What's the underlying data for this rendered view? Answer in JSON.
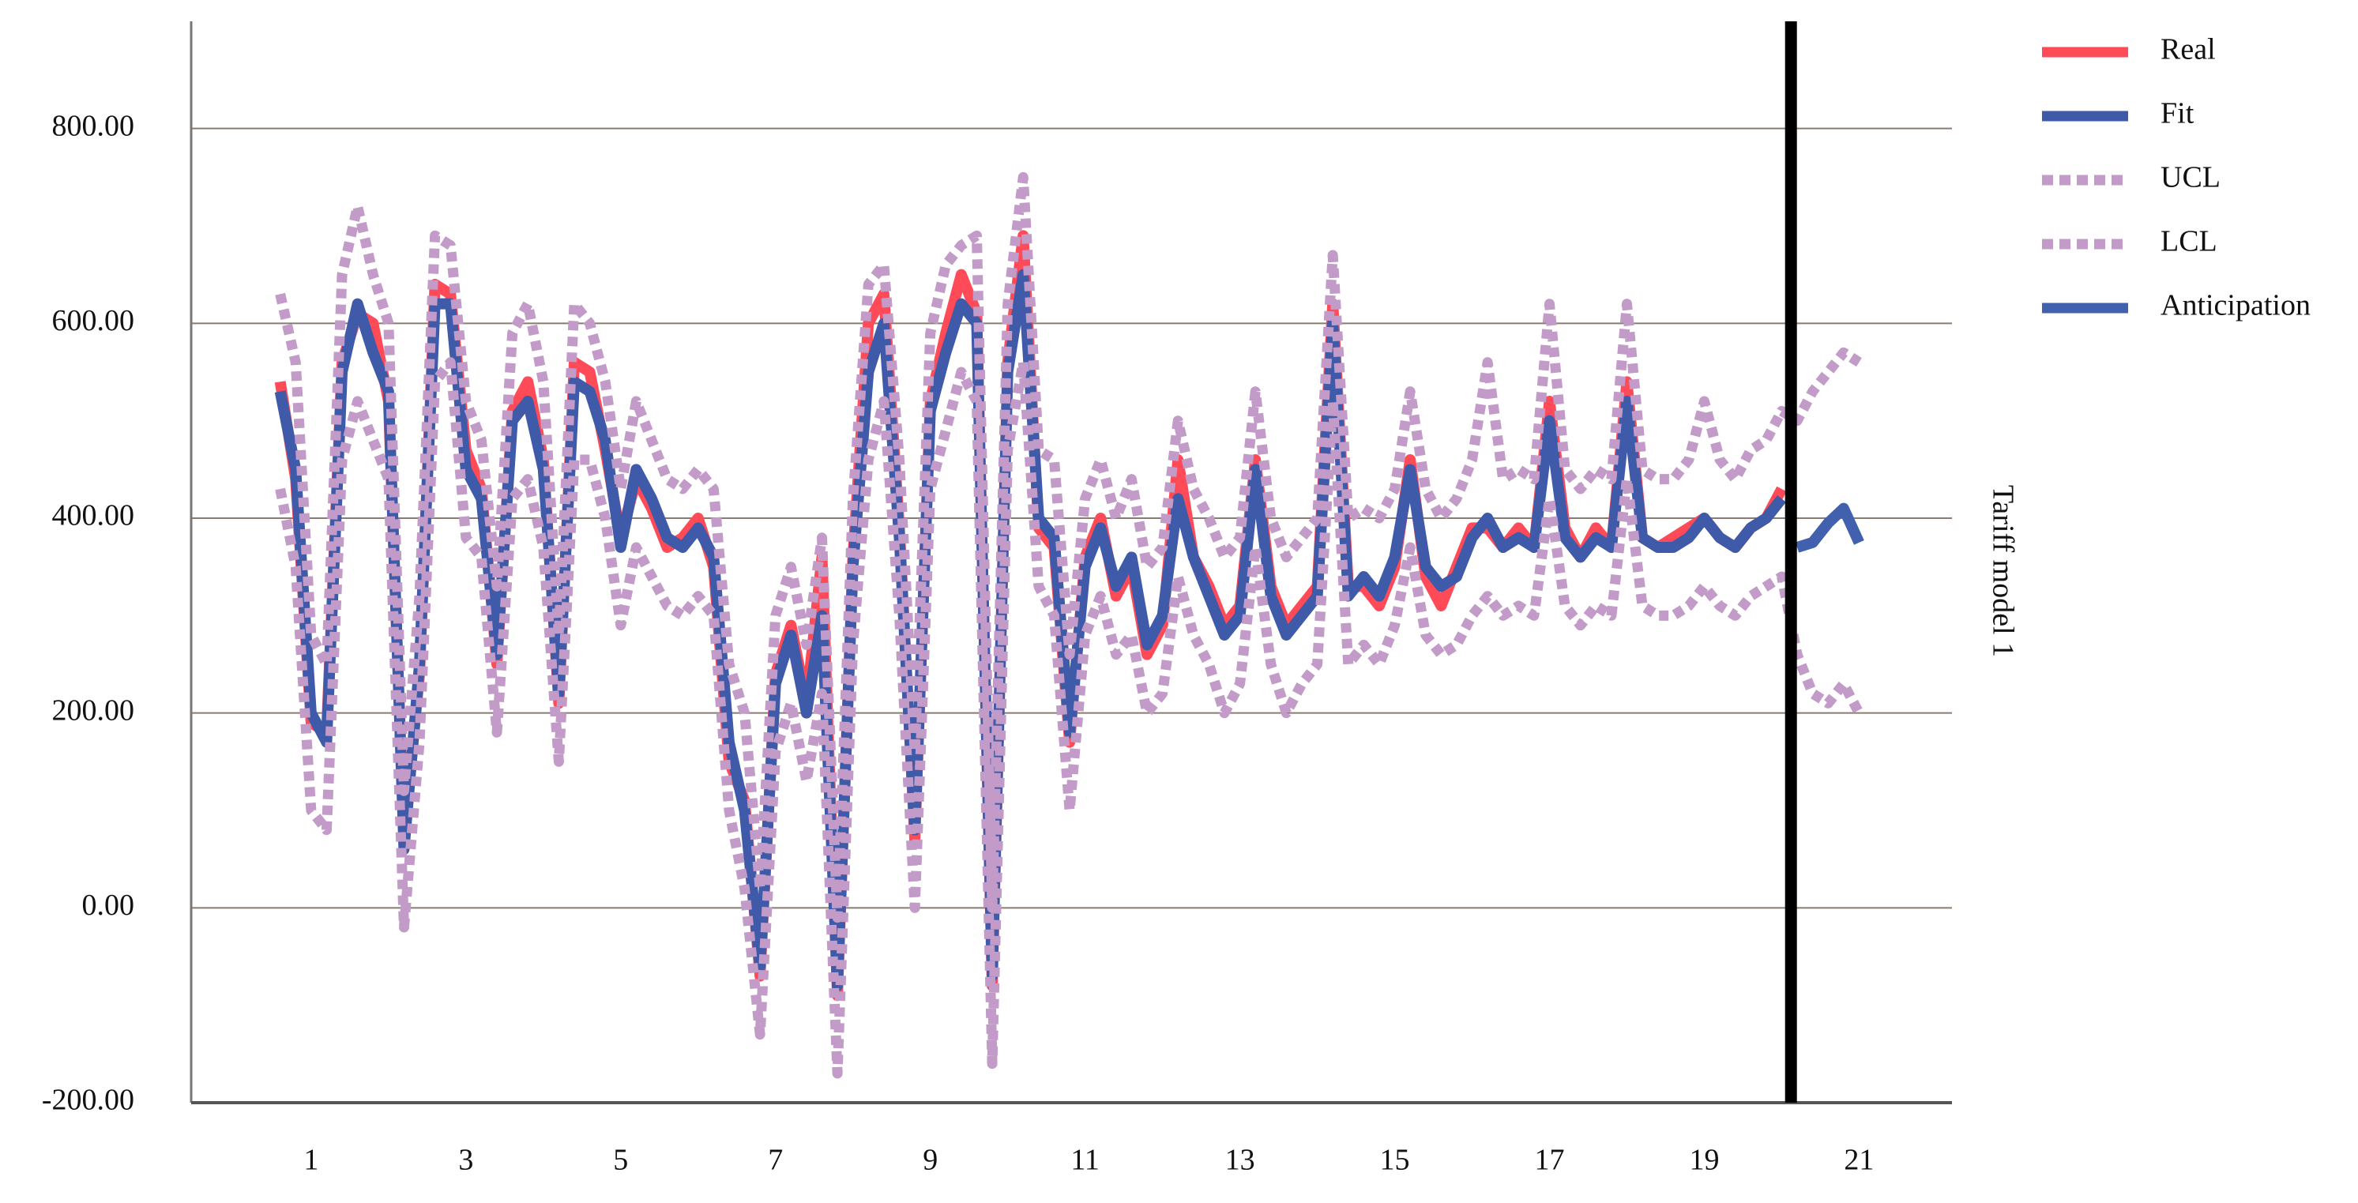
{
  "chart_data": {
    "type": "line",
    "side_label": "Tariff model 1",
    "x": [
      0.6,
      0.8,
      1.0,
      1.2,
      1.4,
      1.6,
      1.8,
      2.0,
      2.2,
      2.4,
      2.6,
      2.8,
      3.0,
      3.2,
      3.4,
      3.6,
      3.8,
      4.0,
      4.2,
      4.4,
      4.6,
      4.8,
      5.0,
      5.2,
      5.4,
      5.6,
      5.8,
      6.0,
      6.2,
      6.4,
      6.6,
      6.8,
      7.0,
      7.2,
      7.4,
      7.6,
      7.8,
      8.0,
      8.2,
      8.4,
      8.6,
      8.8,
      9.0,
      9.2,
      9.4,
      9.6,
      9.8,
      10.0,
      10.2,
      10.4,
      10.6,
      10.8,
      11.0,
      11.2,
      11.4,
      11.6,
      11.8,
      12.0,
      12.2,
      12.4,
      12.6,
      12.8,
      13.0,
      13.2,
      13.4,
      13.6,
      13.8,
      14.0,
      14.2,
      14.4,
      14.6,
      14.8,
      15.0,
      15.2,
      15.4,
      15.6,
      15.8,
      16.0,
      16.2,
      16.4,
      16.6,
      16.8,
      17.0,
      17.2,
      17.4,
      17.6,
      17.8,
      18.0,
      18.2,
      18.4,
      18.6,
      18.8,
      19.0,
      19.2,
      19.4,
      19.6,
      19.8,
      20.0,
      20.2,
      20.4,
      20.6,
      20.8,
      21.0
    ],
    "series": [
      {
        "name": "Real",
        "color": "#ff4a57",
        "dash": false,
        "values": [
          540,
          440,
          190,
          180,
          560,
          610,
          600,
          520,
          70,
          240,
          640,
          630,
          470,
          430,
          250,
          510,
          540,
          460,
          210,
          560,
          550,
          470,
          380,
          440,
          410,
          370,
          380,
          400,
          350,
          150,
          110,
          -70,
          240,
          290,
          210,
          360,
          -90,
          360,
          600,
          630,
          390,
          70,
          520,
          590,
          650,
          610,
          -80,
          560,
          690,
          390,
          370,
          170,
          360,
          400,
          320,
          350,
          260,
          290,
          460,
          360,
          330,
          290,
          310,
          460,
          330,
          290,
          310,
          330,
          620,
          330,
          330,
          310,
          350,
          460,
          340,
          310,
          350,
          390,
          390,
          370,
          390,
          370,
          520,
          390,
          360,
          390,
          370,
          540,
          380,
          370,
          380,
          390,
          400,
          380,
          370,
          390,
          400,
          430,
          null,
          null,
          null,
          null,
          null
        ]
      },
      {
        "name": "Fit",
        "color": "#3f5aa8",
        "dash": false,
        "values": [
          530,
          450,
          200,
          170,
          550,
          620,
          570,
          530,
          60,
          250,
          620,
          620,
          450,
          420,
          260,
          500,
          520,
          450,
          220,
          540,
          530,
          480,
          370,
          450,
          420,
          380,
          370,
          390,
          360,
          170,
          100,
          -60,
          230,
          280,
          200,
          300,
          -80,
          350,
          550,
          600,
          380,
          80,
          510,
          570,
          620,
          600,
          -70,
          550,
          650,
          400,
          380,
          180,
          350,
          390,
          330,
          360,
          270,
          300,
          420,
          360,
          320,
          280,
          300,
          450,
          320,
          280,
          300,
          320,
          600,
          320,
          340,
          320,
          360,
          450,
          350,
          330,
          340,
          380,
          400,
          370,
          380,
          370,
          500,
          380,
          360,
          380,
          370,
          520,
          380,
          370,
          370,
          380,
          400,
          380,
          370,
          390,
          400,
          420,
          null,
          null,
          null,
          null,
          null
        ]
      },
      {
        "name": "UCL",
        "color": "#c29bc8",
        "dash": true,
        "values": [
          630,
          560,
          280,
          250,
          650,
          720,
          650,
          600,
          120,
          320,
          690,
          680,
          520,
          480,
          330,
          590,
          620,
          540,
          280,
          620,
          600,
          540,
          430,
          520,
          480,
          440,
          430,
          450,
          430,
          250,
          200,
          20,
          300,
          350,
          270,
          380,
          -10,
          420,
          640,
          660,
          460,
          160,
          590,
          660,
          680,
          690,
          0,
          620,
          750,
          470,
          460,
          260,
          420,
          460,
          400,
          440,
          350,
          370,
          500,
          430,
          400,
          360,
          380,
          530,
          400,
          360,
          380,
          400,
          670,
          400,
          410,
          400,
          430,
          530,
          430,
          400,
          420,
          460,
          560,
          440,
          450,
          440,
          620,
          450,
          430,
          450,
          440,
          620,
          450,
          440,
          440,
          460,
          520,
          460,
          440,
          470,
          480,
          510,
          500,
          530,
          550,
          570,
          560
        ]
      },
      {
        "name": "LCL",
        "color": "#c29bc8",
        "dash": true,
        "values": [
          430,
          350,
          100,
          80,
          460,
          520,
          480,
          440,
          -20,
          170,
          540,
          560,
          380,
          360,
          180,
          420,
          440,
          370,
          150,
          460,
          460,
          400,
          290,
          370,
          340,
          310,
          300,
          320,
          300,
          100,
          20,
          -130,
          160,
          210,
          130,
          220,
          -170,
          270,
          460,
          520,
          300,
          0,
          430,
          490,
          550,
          520,
          -160,
          470,
          560,
          330,
          300,
          100,
          280,
          320,
          260,
          280,
          200,
          220,
          340,
          280,
          250,
          200,
          230,
          370,
          250,
          200,
          230,
          250,
          520,
          250,
          270,
          250,
          290,
          370,
          280,
          260,
          270,
          300,
          320,
          300,
          310,
          300,
          420,
          310,
          290,
          310,
          300,
          440,
          310,
          300,
          300,
          310,
          330,
          310,
          300,
          320,
          330,
          340,
          260,
          220,
          210,
          230,
          200
        ]
      },
      {
        "name": "Anticipation",
        "color": "#4160ad",
        "dash": false,
        "x": [
          20.2,
          20.4,
          20.6,
          20.8,
          21.0
        ],
        "values": [
          370,
          375,
          395,
          410,
          375
        ]
      }
    ],
    "xlim": [
      -0.55,
      22.2
    ],
    "xticks": [
      1,
      3,
      5,
      7,
      9,
      11,
      13,
      15,
      17,
      19,
      21
    ],
    "ylim": [
      -200,
      910
    ],
    "yticks": [
      {
        "value": -200,
        "label": "-200.00"
      },
      {
        "value": 0,
        "label": "0.00"
      },
      {
        "value": 200,
        "label": "200.00"
      },
      {
        "value": 400,
        "label": "400.00"
      },
      {
        "value": 600,
        "label": "600.00"
      },
      {
        "value": 800,
        "label": "800.00"
      }
    ],
    "vline": 20.12,
    "grid": true,
    "legend": "right"
  }
}
